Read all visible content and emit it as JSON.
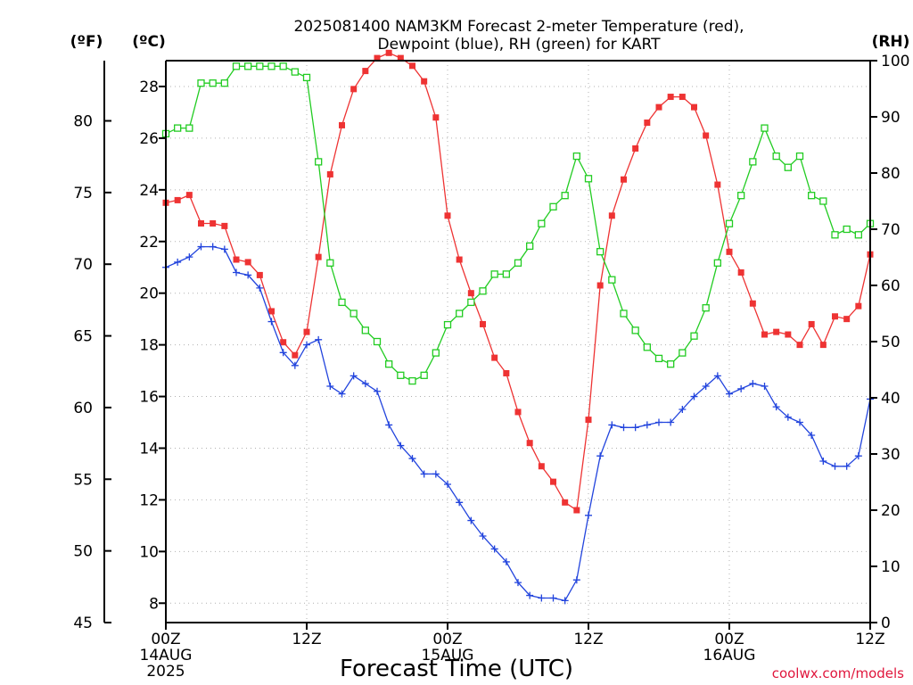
{
  "chart_data": {
    "type": "line",
    "title_line1": "2025081400 NAM3KM Forecast 2-meter Temperature (red),",
    "title_line2": "Dewpoint (blue), RH (green) for KART",
    "xlabel": "Forecast Time (UTC)",
    "credit": "coolwx.com/models",
    "units": {
      "fahrenheit": "(ºF)",
      "celsius": "(ºC)",
      "rh": "(RH)"
    },
    "x_range_hours": [
      0,
      60
    ],
    "celsius_range": [
      7.25,
      29.0
    ],
    "fahrenheit_range": [
      45,
      84.2
    ],
    "rh_range": [
      0,
      100
    ],
    "celsius_ticks": [
      8,
      10,
      12,
      14,
      16,
      18,
      20,
      22,
      24,
      26,
      28
    ],
    "fahrenheit_ticks": [
      45,
      50,
      55,
      60,
      65,
      70,
      75,
      80
    ],
    "rh_ticks": [
      0,
      10,
      20,
      30,
      40,
      50,
      60,
      70,
      80,
      90,
      100
    ],
    "x_ticks": [
      {
        "hour": 0,
        "lines": [
          "00Z",
          "14AUG",
          "2025"
        ]
      },
      {
        "hour": 12,
        "lines": [
          "12Z"
        ]
      },
      {
        "hour": 24,
        "lines": [
          "00Z",
          "15AUG"
        ]
      },
      {
        "hour": 36,
        "lines": [
          "12Z"
        ]
      },
      {
        "hour": 48,
        "lines": [
          "00Z",
          "16AUG"
        ]
      },
      {
        "hour": 60,
        "lines": [
          "12Z"
        ]
      }
    ],
    "hours": [
      0,
      1,
      2,
      3,
      4,
      5,
      6,
      7,
      8,
      9,
      10,
      11,
      12,
      13,
      14,
      15,
      16,
      17,
      18,
      19,
      20,
      21,
      22,
      23,
      24,
      25,
      26,
      27,
      28,
      29,
      30,
      31,
      32,
      33,
      34,
      35,
      36,
      37,
      38,
      39,
      40,
      41,
      42,
      43,
      44,
      45,
      46,
      47,
      48,
      49,
      50,
      51,
      52,
      53,
      54,
      55,
      56,
      57,
      58,
      59,
      60
    ],
    "series": [
      {
        "name": "Temperature",
        "axis": "celsius",
        "color": "#ee3333",
        "marker": "filled-square",
        "values": [
          23.5,
          23.6,
          23.8,
          22.7,
          22.7,
          22.6,
          21.3,
          21.2,
          20.7,
          19.3,
          18.1,
          17.6,
          18.5,
          21.4,
          24.6,
          26.5,
          27.9,
          28.6,
          29.1,
          29.3,
          29.1,
          28.8,
          28.2,
          26.8,
          23.0,
          21.3,
          20.0,
          18.8,
          17.5,
          16.9,
          15.4,
          14.2,
          13.3,
          12.7,
          11.9,
          11.6,
          15.1,
          20.3,
          23.0,
          24.4,
          25.6,
          26.6,
          27.2,
          27.6,
          27.6,
          27.2,
          26.1,
          24.2,
          21.6,
          20.8,
          19.6,
          18.4,
          18.5,
          18.4,
          18.0,
          18.8,
          18.0,
          19.1,
          19.0,
          19.5,
          21.5
        ]
      },
      {
        "name": "Dewpoint",
        "axis": "celsius",
        "color": "#2244dd",
        "marker": "plus",
        "values": [
          21.0,
          21.2,
          21.4,
          21.8,
          21.8,
          21.7,
          20.8,
          20.7,
          20.2,
          18.9,
          17.7,
          17.2,
          18.0,
          18.2,
          16.4,
          16.1,
          16.8,
          16.5,
          16.2,
          14.9,
          14.1,
          13.6,
          13.0,
          13.0,
          12.6,
          11.9,
          11.2,
          10.6,
          10.1,
          9.6,
          8.8,
          8.3,
          8.2,
          8.2,
          8.1,
          8.9,
          11.4,
          13.7,
          14.9,
          14.8,
          14.8,
          14.9,
          15.0,
          15.0,
          15.5,
          16.0,
          16.4,
          16.8,
          16.1,
          16.3,
          16.5,
          16.4,
          15.6,
          15.2,
          15.0,
          14.5,
          13.5,
          13.3,
          13.3,
          13.7,
          15.9
        ]
      },
      {
        "name": "RH",
        "axis": "rh",
        "color": "#22cc22",
        "marker": "open-square",
        "values": [
          87,
          88,
          88,
          96,
          96,
          96,
          99,
          99,
          99,
          99,
          99,
          98,
          97,
          82,
          64,
          57,
          55,
          52,
          50,
          46,
          44,
          43,
          44,
          48,
          53,
          55,
          57,
          59,
          62,
          62,
          64,
          67,
          71,
          74,
          76,
          83,
          79,
          66,
          61,
          55,
          52,
          49,
          47,
          46,
          48,
          51,
          56,
          64,
          71,
          76,
          82,
          88,
          83,
          81,
          83,
          76,
          75,
          69,
          70,
          69,
          71
        ]
      }
    ]
  }
}
